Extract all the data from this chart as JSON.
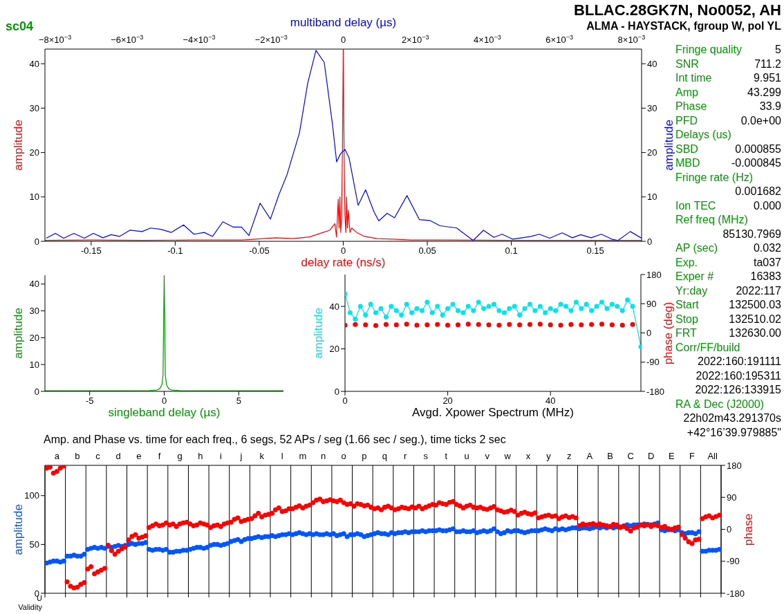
{
  "chart_data": [
    {
      "type": "line",
      "subtitle": "sc04",
      "xlabel": "delay rate (ns/s)",
      "x2label": "multiband delay (µs)",
      "ylabel": "amplitude",
      "y2label": "amplitude",
      "xlim": [
        -0.1775,
        0.1775
      ],
      "xticks": [
        -0.15,
        -0.1,
        -0.05,
        0,
        0.05,
        0.1,
        0.15
      ],
      "x2lim": [
        -0.00828,
        0.00828
      ],
      "x2ticks": [
        {
          "value": -0.008,
          "label": "−8×10$^{−3}$"
        },
        {
          "value": -0.006,
          "label": "−6×10$^{−3}$"
        },
        {
          "value": -0.004,
          "label": "−4×10$^{−3}$"
        },
        {
          "value": -0.002,
          "label": "−2×10$^{−3}$"
        },
        0,
        {
          "value": 0.002,
          "label": "2×10$^{−3}$"
        },
        {
          "value": 0.004,
          "label": "4×10$^{−3}$"
        },
        {
          "value": 0.006,
          "label": "6×10$^{−3}$"
        },
        {
          "value": 0.008,
          "label": "8×10$^{−3}$"
        }
      ],
      "ylim": [
        0,
        43.3
      ],
      "yticks": [
        0,
        10,
        20,
        30,
        40
      ],
      "y2lim": [
        0,
        43.3
      ],
      "y2ticks": [
        0,
        10,
        20,
        30,
        40
      ],
      "series": [
        {
          "type": "line",
          "color": "#ff0000",
          "x": [
            -0.1775,
            -0.15,
            -0.12,
            -0.09,
            -0.06,
            -0.04,
            -0.03,
            -0.02,
            -0.012,
            -0.008,
            -0.005,
            -0.004,
            -0.003,
            -0.0025,
            -0.002,
            -0.0015,
            -0.001,
            -0.0005,
            0,
            0.0005,
            0.001,
            0.0015,
            0.002,
            0.0025,
            0.003,
            0.004,
            0.005,
            0.008,
            0.012,
            0.02,
            0.03,
            0.04,
            0.06,
            0.1,
            0.15,
            0.1775
          ],
          "values": [
            0.2,
            0.3,
            0.2,
            0.3,
            0.3,
            0.8,
            0.6,
            1.0,
            2,
            2.5,
            4,
            1,
            9.5,
            3,
            10,
            2,
            5,
            20,
            43.3,
            20,
            6,
            2,
            10,
            3,
            7,
            2,
            3,
            2,
            1.2,
            0.6,
            0.5,
            0.3,
            0.3,
            0.2,
            0.2,
            0.2
          ]
        },
        {
          "type": "line",
          "color": "#0000ff",
          "axis": "x2",
          "x": [
            -0.008243,
            -0.007991,
            -0.007761,
            -0.007474,
            -0.007187,
            -0.006935,
            -0.00667,
            -0.006441,
            -0.006211,
            -0.005924,
            -0.00558,
            -0.00535,
            -0.005063,
            -0.004776,
            -0.004432,
            -0.004145,
            -0.003858,
            -0.003628,
            -0.003341,
            -0.003054,
            -0.002824,
            -0.002618,
            -0.002308,
            -0.002021,
            -0.001791,
            -0.001561,
            -0.001217,
            -0.000987,
            -0.000758,
            -0.000528,
            -0.000299,
            -0.000184,
            -6.9e-05,
            4.6e-05,
            0.000161,
            0.000413,
            0.00062,
            0.00085,
            0.000987,
            0.001217,
            0.001424,
            0.001768,
            0.002113,
            0.0024,
            0.002687,
            0.003146,
            0.003605,
            0.003892,
            0.004179,
            0.004409,
            0.004696,
            0.005212,
            0.005442,
            0.005729,
            0.006073,
            0.006361,
            0.00659,
            0.006877,
            0.007164,
            0.007451,
            0.007623,
            0.007968,
            0.008278
          ],
          "values": [
            0.7,
            1.8,
            0.7,
            1.8,
            0.7,
            1.8,
            0.8,
            1.5,
            1.1,
            2.5,
            2.2,
            3,
            2.7,
            2.0,
            3.7,
            1.6,
            2.0,
            1.1,
            4.4,
            3.2,
            3.2,
            1.3,
            8.6,
            5,
            10.4,
            15,
            24.4,
            35.6,
            43,
            40.3,
            26.3,
            17.9,
            19.8,
            20.7,
            18.8,
            8.1,
            11.6,
            6.7,
            4.6,
            6.3,
            5.3,
            10.3,
            4.9,
            4.7,
            3.5,
            3,
            0.2,
            2.5,
            0.9,
            1.6,
            0.5,
            1.1,
            1.6,
            0.7,
            1.9,
            0.8,
            1.5,
            0.8,
            1.6,
            0.5,
            0.2,
            2.2,
            0.7
          ]
        }
      ]
    },
    {
      "type": "line",
      "xlabel": "singleband delay (µs)",
      "ylabel": "amplitude",
      "xlim": [
        -8,
        8
      ],
      "xticks": [
        -5,
        0,
        5
      ],
      "ylim": [
        0,
        43.3
      ],
      "yticks": [
        0,
        10,
        20,
        30,
        40
      ],
      "series": [
        {
          "color": "#009900",
          "x": [
            -8,
            -3,
            -1,
            -0.5,
            -0.3,
            -0.15,
            -0.08,
            0,
            0.08,
            0.15,
            0.3,
            0.5,
            1,
            3,
            8
          ],
          "values": [
            0.2,
            0.2,
            0.3,
            0.5,
            1,
            2.5,
            6,
            43.3,
            6,
            2.5,
            1,
            0.5,
            0.3,
            0.2,
            0.2
          ]
        }
      ]
    },
    {
      "type": "line",
      "xlabel": "Avgd. Xpower Spectrum (MHz)",
      "ylabel": "amplitude",
      "y2label": "phase (deg)",
      "xlim": [
        0,
        57.6
      ],
      "xticks": [
        0,
        20,
        40
      ],
      "ylim": [
        0,
        55
      ],
      "yticks": [
        0,
        20,
        40
      ],
      "y2lim": [
        -180,
        180
      ],
      "y2ticks": [
        -180,
        -90,
        0,
        90,
        180
      ],
      "series": [
        {
          "type": "line",
          "color": "#00e5ee",
          "marker": "circle",
          "x": [
            0,
            1,
            2,
            3,
            4,
            5,
            6,
            7,
            8,
            9,
            10,
            11,
            12,
            13,
            14,
            15,
            16,
            17,
            18,
            19,
            20,
            21,
            22,
            23,
            24,
            25,
            26,
            27,
            28,
            29,
            30,
            31,
            32,
            33,
            34,
            35,
            36,
            37,
            38,
            39,
            40,
            41,
            42,
            43,
            44,
            45,
            46,
            47,
            48,
            49,
            50,
            51,
            52,
            53,
            54,
            55,
            56,
            57.6
          ],
          "values": [
            46,
            37,
            34,
            40,
            36,
            41,
            37,
            39,
            35,
            40,
            38,
            36,
            41,
            37,
            39,
            38,
            42,
            37,
            40,
            36,
            39,
            41,
            38,
            37,
            40,
            38,
            42,
            39,
            40,
            41,
            38,
            37,
            39,
            40,
            36,
            39,
            41,
            38,
            40,
            37,
            39,
            38,
            41,
            40,
            38,
            42,
            39,
            41,
            38,
            40,
            42,
            39,
            41,
            40,
            38,
            43,
            40,
            21
          ]
        },
        {
          "type": "scatter",
          "color": "#ff0000",
          "axis": "y2",
          "x": [
            0,
            2,
            4,
            6,
            8,
            10,
            12,
            14,
            16,
            18,
            20,
            22,
            24,
            26,
            28,
            30,
            32,
            34,
            36,
            38,
            40,
            42,
            44,
            46,
            48,
            50,
            52,
            54,
            56
          ],
          "values": [
            24,
            26,
            25,
            23,
            26,
            25,
            27,
            24,
            25,
            26,
            24,
            25,
            27,
            26,
            25,
            24,
            26,
            25,
            26,
            27,
            25,
            24,
            26,
            25,
            26,
            27,
            25,
            24,
            26
          ]
        }
      ]
    },
    {
      "type": "scatter",
      "title": "Amp. and Phase vs. time for each freq., 6 segs, 52 APs / seg (1.66 sec / seg.), time ticks 2 sec",
      "ylabel": "amplitude",
      "y2label": "phase",
      "grid": "x",
      "annotations": [
        "U",
        "Validity"
      ],
      "categories": [
        null,
        null,
        null,
        "a",
        null,
        null,
        null,
        null,
        null,
        "b",
        null,
        null,
        null,
        null,
        null,
        "c",
        null,
        null,
        null,
        null,
        null,
        "d",
        null,
        null,
        null,
        null,
        null,
        "e",
        null,
        null,
        null,
        null,
        null,
        "f",
        null,
        null,
        null,
        null,
        null,
        "g",
        null,
        null,
        null,
        null,
        null,
        "h",
        null,
        null,
        null,
        null,
        null,
        "i",
        null,
        null,
        null,
        null,
        null,
        "j",
        null,
        null,
        null,
        null,
        null,
        "k",
        null,
        null,
        null,
        null,
        null,
        "l",
        null,
        null,
        null,
        null,
        null,
        "m",
        null,
        null,
        null,
        null,
        null,
        "n",
        null,
        null,
        null,
        null,
        null,
        "o",
        null,
        null,
        null,
        null,
        null,
        "p",
        null,
        null,
        null,
        null,
        null,
        "q",
        null,
        null,
        null,
        null,
        null,
        "r",
        null,
        null,
        null,
        null,
        null,
        "s",
        null,
        null,
        null,
        null,
        null,
        "t",
        null,
        null,
        null,
        null,
        null,
        "u",
        null,
        null,
        null,
        null,
        null,
        "v",
        null,
        null,
        null,
        null,
        null,
        "w",
        null,
        null,
        null,
        null,
        null,
        "x",
        null,
        null,
        null,
        null,
        null,
        "y",
        null,
        null,
        null,
        null,
        null,
        "z",
        null,
        null,
        null,
        null,
        null,
        "A",
        null,
        null,
        null,
        null,
        null,
        "B",
        null,
        null,
        null,
        null,
        null,
        "C",
        null,
        null,
        null,
        null,
        null,
        "D",
        null,
        null,
        null,
        null,
        null,
        "E",
        null,
        null,
        null,
        null,
        null,
        "F",
        null,
        null,
        null,
        null,
        null,
        "All",
        null,
        null
      ],
      "ylim": [
        0,
        131
      ],
      "yticks": [
        0,
        50,
        100
      ],
      "y2lim": [
        -180,
        180
      ],
      "y2ticks": [
        -180,
        -90,
        0,
        90,
        180
      ],
      "series": [
        {
          "color": "#0055ff",
          "values": [
            31,
            32,
            33,
            33,
            32,
            33,
            38,
            38,
            39,
            38,
            38,
            40,
            45,
            46,
            47,
            46,
            47,
            46,
            48,
            47,
            48,
            49,
            48,
            49,
            50,
            51,
            50,
            51,
            51,
            52,
            45,
            44,
            45,
            45,
            44,
            45,
            42,
            42,
            43,
            43,
            44,
            44,
            45,
            46,
            47,
            47,
            46,
            47,
            49,
            50,
            50,
            49,
            50,
            51,
            53,
            54,
            55,
            53,
            55,
            56,
            56,
            57,
            58,
            57,
            58,
            58,
            59,
            58,
            59,
            60,
            60,
            61,
            60,
            61,
            62,
            61,
            60,
            61,
            60,
            61,
            60,
            60,
            61,
            60,
            61,
            59,
            60,
            61,
            58,
            60,
            60,
            61,
            60,
            58,
            59,
            60,
            61,
            62,
            61,
            61,
            60,
            62,
            61,
            62,
            62,
            63,
            62,
            63,
            63,
            63,
            64,
            63,
            64,
            64,
            64,
            65,
            64,
            64,
            65,
            66,
            63,
            63,
            64,
            63,
            63,
            64,
            62,
            63,
            64,
            63,
            64,
            66,
            63,
            61,
            62,
            64,
            63,
            64,
            64,
            63,
            62,
            63,
            64,
            64,
            64,
            65,
            66,
            65,
            64,
            66,
            65,
            66,
            65,
            66,
            67,
            67,
            66,
            67,
            67,
            66,
            67,
            68,
            67,
            68,
            67,
            68,
            67,
            68,
            68,
            69,
            70,
            69,
            70,
            70,
            70,
            71,
            70,
            70,
            71,
            72,
            65,
            64,
            65,
            65,
            64,
            65,
            62,
            61,
            62,
            62,
            61,
            63,
            43,
            43,
            44,
            44,
            44,
            45
          ]
        },
        {
          "color": "#ff0000",
          "axis": "y2",
          "values": [
            172,
            175,
            158,
            163,
            172,
            178,
            -148,
            -160,
            -165,
            -163,
            -155,
            -150,
            -112,
            -105,
            -125,
            -120,
            -115,
            -110,
            -45,
            -60,
            -70,
            -62,
            -55,
            -50,
            -30,
            -20,
            -15,
            -25,
            -22,
            -18,
            5,
            10,
            15,
            10,
            12,
            18,
            12,
            15,
            8,
            15,
            18,
            20,
            15,
            10,
            12,
            18,
            15,
            12,
            5,
            10,
            12,
            8,
            15,
            18,
            20,
            28,
            32,
            22,
            25,
            28,
            30,
            38,
            45,
            35,
            40,
            42,
            45,
            55,
            60,
            50,
            52,
            58,
            58,
            62,
            66,
            60,
            65,
            68,
            75,
            82,
            85,
            78,
            80,
            83,
            80,
            78,
            82,
            75,
            70,
            72,
            65,
            72,
            70,
            66,
            68,
            62,
            58,
            60,
            55,
            62,
            65,
            60,
            55,
            58,
            62,
            60,
            58,
            63,
            60,
            65,
            58,
            62,
            66,
            70,
            68,
            75,
            72,
            70,
            76,
            78,
            70,
            66,
            60,
            65,
            68,
            62,
            60,
            62,
            58,
            56,
            60,
            64,
            55,
            52,
            48,
            50,
            54,
            50,
            40,
            45,
            48,
            44,
            42,
            46,
            32,
            35,
            38,
            40,
            36,
            38,
            30,
            35,
            38,
            33,
            36,
            32,
            10,
            15,
            12,
            14,
            16,
            12,
            15,
            12,
            10,
            8,
            14,
            12,
            5,
            8,
            2,
            -5,
            4,
            6,
            12,
            10,
            14,
            8,
            12,
            10,
            5,
            8,
            2,
            0,
            4,
            6,
            -15,
            -25,
            -35,
            -40,
            -30,
            -28,
            30,
            35,
            38,
            32,
            36,
            40
          ]
        }
      ]
    },
    {
      "type": "other",
      "title": "BLLAC.28GK7N, No0052, AH",
      "subtitle": "ALMA - HAYSTACK, fgroup W, pol YL",
      "annotations": [
        "Fringe quality\t5",
        "SNR\t711.2",
        "Int time\t9.951",
        "Amp\t43.299",
        "Phase\t33.9",
        "PFD\t0.0e+00",
        "Delays (us)",
        "SBD\t0.000855",
        "MBD\t-0.000845",
        "Fringe rate (Hz)",
        "\t0.001682",
        "Ion TEC\t0.000",
        "Ref freq (MHz)",
        "\t85130.7969",
        "AP (sec)\t0.032",
        "Exp.\tta037",
        "Exper #\t16383",
        "Yr:day\t2022:117",
        "Start\t132500.03",
        "Stop\t132510.02",
        "FRT\t132630.00",
        "Corr/FF/build",
        "\t2022:160:191111",
        "\t2022:160:195311",
        "\t2022:126:133915",
        "RA & Dec (J2000)",
        "\t22h02m43.291370s",
        "\t+42°16’39.979885\""
      ]
    }
  ]
}
